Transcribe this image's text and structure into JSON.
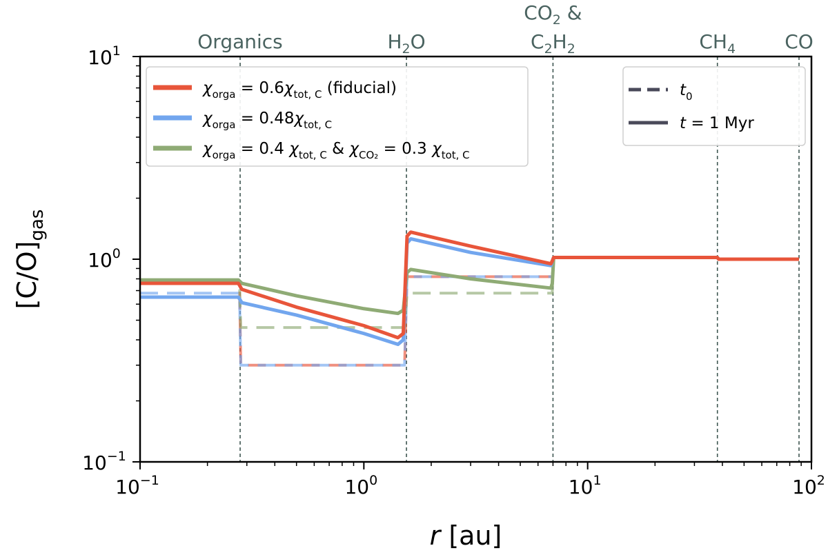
{
  "chart_data": {
    "type": "line",
    "xlabel": {
      "symbol": "r",
      "unit": "[au]"
    },
    "ylabel": {
      "main": "[C/O]",
      "sub": "gas"
    },
    "xscale": "log",
    "yscale": "log",
    "xlim": [
      0.1,
      100
    ],
    "ylim": [
      0.1,
      10
    ],
    "x_ticks": [
      {
        "base": "10",
        "exp": "−1",
        "value": 0.1
      },
      {
        "base": "10",
        "exp": "0",
        "value": 1
      },
      {
        "base": "10",
        "exp": "1",
        "value": 10
      },
      {
        "base": "10",
        "exp": "2",
        "value": 100
      }
    ],
    "y_ticks": [
      {
        "base": "10",
        "exp": "−1",
        "value": 0.1
      },
      {
        "base": "10",
        "exp": "0",
        "value": 1
      },
      {
        "base": "10",
        "exp": "1",
        "value": 10
      }
    ],
    "snow_lines": [
      {
        "x": 0.28,
        "parts": [
          {
            "t": "Organics"
          }
        ]
      },
      {
        "x": 1.55,
        "parts": [
          {
            "t": "H"
          },
          {
            "t": "2",
            "sub": true
          },
          {
            "t": "O"
          }
        ]
      },
      {
        "x": 7.0,
        "parts": [
          {
            "t": "CO"
          },
          {
            "t": "2",
            "sub": true
          },
          {
            "t": " &"
          }
        ],
        "parts2": [
          {
            "t": "C"
          },
          {
            "t": "2",
            "sub": true
          },
          {
            "t": "H"
          },
          {
            "t": "2",
            "sub": true
          }
        ]
      },
      {
        "x": 38.0,
        "parts": [
          {
            "t": "CH"
          },
          {
            "t": "4",
            "sub": true
          }
        ]
      },
      {
        "x": 88.0,
        "parts": [
          {
            "t": "CO"
          }
        ]
      }
    ],
    "colors": {
      "fiducial": "#e8553a",
      "chi048": "#72a6ee",
      "chi04": "#8fab75",
      "dark": "#4a4a5a"
    },
    "series": [
      {
        "name": "fiducial_t0",
        "color_key": "fiducial",
        "style": "dashed",
        "points": [
          [
            0.1,
            0.76
          ],
          [
            0.278,
            0.76
          ],
          [
            0.282,
            0.3
          ],
          [
            1.52,
            0.3
          ],
          [
            1.56,
            0.82
          ],
          [
            6.95,
            0.82
          ],
          [
            7.05,
            1.02
          ],
          [
            38,
            1.02
          ],
          [
            38.5,
            1.0
          ],
          [
            88,
            1.0
          ]
        ]
      },
      {
        "name": "chi048_t0",
        "color_key": "chi048",
        "style": "dashed",
        "points": [
          [
            0.1,
            0.68
          ],
          [
            0.278,
            0.68
          ],
          [
            0.282,
            0.3
          ],
          [
            1.52,
            0.3
          ],
          [
            1.56,
            0.82
          ],
          [
            6.95,
            0.82
          ],
          [
            7.05,
            1.02
          ],
          [
            38,
            1.02
          ],
          [
            38.5,
            1.0
          ],
          [
            88,
            1.0
          ]
        ]
      },
      {
        "name": "chi04_t0",
        "color_key": "chi04",
        "style": "dashed",
        "points": [
          [
            0.1,
            0.78
          ],
          [
            0.278,
            0.78
          ],
          [
            0.282,
            0.46
          ],
          [
            1.52,
            0.46
          ],
          [
            1.56,
            0.68
          ],
          [
            6.95,
            0.68
          ],
          [
            7.05,
            1.02
          ],
          [
            38,
            1.02
          ],
          [
            38.5,
            1.0
          ],
          [
            88,
            1.0
          ]
        ]
      },
      {
        "name": "chi04_t1",
        "color_key": "chi04",
        "style": "solid",
        "points": [
          [
            0.1,
            0.79
          ],
          [
            0.275,
            0.79
          ],
          [
            0.285,
            0.76
          ],
          [
            0.5,
            0.66
          ],
          [
            1.0,
            0.57
          ],
          [
            1.42,
            0.54
          ],
          [
            1.5,
            0.56
          ],
          [
            1.56,
            0.86
          ],
          [
            1.62,
            0.89
          ],
          [
            3.0,
            0.8
          ],
          [
            6.85,
            0.72
          ],
          [
            6.95,
            0.76
          ],
          [
            7.05,
            1.02
          ],
          [
            38,
            1.02
          ],
          [
            38.5,
            1.0
          ],
          [
            88,
            1.0
          ]
        ]
      },
      {
        "name": "chi048_t1",
        "color_key": "chi048",
        "style": "solid",
        "points": [
          [
            0.1,
            0.65
          ],
          [
            0.275,
            0.65
          ],
          [
            0.285,
            0.61
          ],
          [
            0.5,
            0.53
          ],
          [
            1.0,
            0.43
          ],
          [
            1.42,
            0.38
          ],
          [
            1.5,
            0.4
          ],
          [
            1.56,
            1.2
          ],
          [
            1.62,
            1.26
          ],
          [
            3.0,
            1.08
          ],
          [
            6.85,
            0.93
          ],
          [
            6.95,
            0.98
          ],
          [
            7.05,
            1.02
          ],
          [
            38,
            1.02
          ],
          [
            38.5,
            1.0
          ],
          [
            88,
            1.0
          ]
        ]
      },
      {
        "name": "fiducial_t1",
        "color_key": "fiducial",
        "style": "solid",
        "points": [
          [
            0.1,
            0.76
          ],
          [
            0.275,
            0.76
          ],
          [
            0.285,
            0.71
          ],
          [
            0.5,
            0.58
          ],
          [
            1.0,
            0.47
          ],
          [
            1.42,
            0.41
          ],
          [
            1.5,
            0.43
          ],
          [
            1.56,
            1.3
          ],
          [
            1.62,
            1.36
          ],
          [
            3.0,
            1.16
          ],
          [
            6.85,
            0.95
          ],
          [
            6.95,
            0.98
          ],
          [
            7.05,
            1.02
          ],
          [
            38,
            1.02
          ],
          [
            38.5,
            1.0
          ],
          [
            88,
            1.0
          ]
        ]
      }
    ],
    "legend_color": [
      {
        "color_key": "fiducial",
        "parts": [
          {
            "t": "χ",
            "i": true
          },
          {
            "t": "orga",
            "sub": true
          },
          {
            "t": " = 0.6"
          },
          {
            "t": "χ",
            "i": true
          },
          {
            "t": "tot, C",
            "sub": true
          },
          {
            "t": " (fiducial)"
          }
        ]
      },
      {
        "color_key": "chi048",
        "parts": [
          {
            "t": "χ",
            "i": true
          },
          {
            "t": "orga",
            "sub": true
          },
          {
            "t": " = 0.48"
          },
          {
            "t": "χ",
            "i": true
          },
          {
            "t": "tot, C",
            "sub": true
          }
        ]
      },
      {
        "color_key": "chi04",
        "parts": [
          {
            "t": "χ",
            "i": true
          },
          {
            "t": "orga",
            "sub": true
          },
          {
            "t": " = 0.4 "
          },
          {
            "t": "χ",
            "i": true
          },
          {
            "t": "tot, C",
            "sub": true
          },
          {
            "t": " & "
          },
          {
            "t": "χ",
            "i": true
          },
          {
            "t": "CO₂",
            "sub": true
          },
          {
            "t": " = 0.3 "
          },
          {
            "t": "χ",
            "i": true
          },
          {
            "t": "tot, C",
            "sub": true
          }
        ]
      }
    ],
    "legend_style": [
      {
        "style": "dashed",
        "parts": [
          {
            "t": "t",
            "i": true
          },
          {
            "t": "0",
            "sub": true
          }
        ]
      },
      {
        "style": "solid",
        "parts": [
          {
            "t": "t",
            "i": true
          },
          {
            "t": " = 1 Myr"
          }
        ]
      }
    ]
  }
}
